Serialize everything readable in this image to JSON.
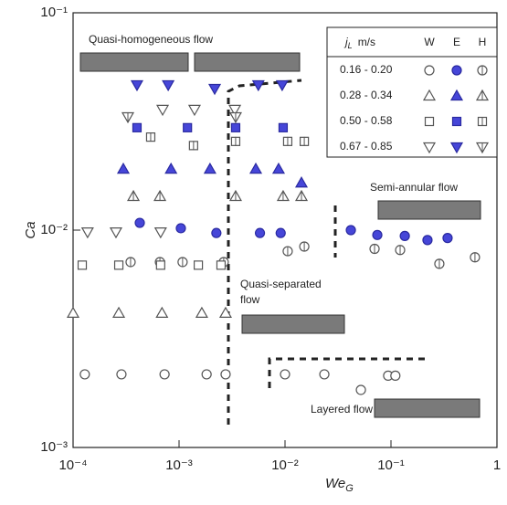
{
  "chart_data": {
    "type": "scatter",
    "x_label": {
      "main": "We",
      "sub": "G"
    },
    "y_label": "Ca",
    "log_x": true,
    "log_y": true,
    "xlim": [
      0.0001,
      1
    ],
    "ylim": [
      0.001,
      0.1
    ],
    "xticks": [
      {
        "value": 0.0001,
        "label": "10⁻⁴"
      },
      {
        "value": 0.001,
        "label": "10⁻³"
      },
      {
        "value": 0.01,
        "label": "10⁻²"
      },
      {
        "value": 0.1,
        "label": "10⁻¹"
      },
      1
    ],
    "yticks": [
      {
        "value": 0.001,
        "label": "10⁻³"
      },
      {
        "value": 0.01,
        "label": "10⁻²"
      },
      {
        "value": 0.1,
        "label": "10⁻¹"
      }
    ],
    "legend_title": {
      "main": "j",
      "sub": "L",
      "unit": "m/s"
    },
    "legend_corner": "upper right",
    "columns": [
      {
        "name": "W",
        "fill": "#ffffff",
        "stroke": "#555555",
        "hatch": false
      },
      {
        "name": "E",
        "fill": "#4646d8",
        "stroke": "#2a2aa0",
        "hatch": false
      },
      {
        "name": "H",
        "fill": "#ffffff",
        "stroke": "#555555",
        "hatch": true
      }
    ],
    "rows": [
      {
        "name": "0.16 - 0.20",
        "marker": "circle",
        "series": [
          {
            "x": [
              0.000129,
              0.000286,
              0.00073,
              0.00182,
              0.00275,
              0.01,
              0.0235,
              0.052,
              0.094,
              0.11
            ],
            "y": [
              0.00217,
              0.00217,
              0.00217,
              0.00217,
              0.00217,
              0.00217,
              0.00217,
              0.00184,
              0.00214,
              0.00214
            ]
          },
          {
            "x": [
              0.000426,
              0.00104,
              0.00225,
              0.0058,
              0.0091,
              0.0418,
              0.0743,
              0.135,
              0.221,
              0.342
            ],
            "y": [
              0.0108,
              0.0102,
              0.0097,
              0.0097,
              0.0097,
              0.01,
              0.0095,
              0.0094,
              0.009,
              0.0092
            ]
          },
          {
            "x": [
              0.000349,
              0.00066,
              0.00108,
              0.00264,
              0.0106,
              0.0152,
              0.07,
              0.122,
              0.286,
              0.62
            ],
            "y": [
              0.00713,
              0.00713,
              0.00713,
              0.00713,
              0.008,
              0.0084,
              0.0082,
              0.0081,
              0.007,
              0.0075
            ]
          }
        ]
      },
      {
        "name": "0.28 - 0.34",
        "marker": "triangle-up",
        "series": [
          {
            "x": [
              0.0001,
              0.00027,
              0.00069,
              0.00164,
              0.00275
            ],
            "y": [
              0.00415,
              0.00415,
              0.00415,
              0.00415,
              0.00415
            ]
          },
          {
            "x": [
              0.000298,
              0.00084,
              0.00196,
              0.0053,
              0.0087,
              0.0143
            ],
            "y": [
              0.0191,
              0.0191,
              0.0191,
              0.0191,
              0.0191,
              0.0165
            ]
          },
          {
            "x": [
              0.000371,
              0.00066,
              0.00342,
              0.0096,
              0.0143
            ],
            "y": [
              0.0143,
              0.0143,
              0.0143,
              0.0143,
              0.0143
            ]
          }
        ]
      },
      {
        "name": "0.50 - 0.58",
        "marker": "square",
        "series": [
          {
            "x": [
              0.000122,
              0.00027,
              0.00067,
              0.00152,
              0.00249
            ],
            "y": [
              0.0069,
              0.0069,
              0.0069,
              0.0069,
              0.0069
            ]
          },
          {
            "x": [
              0.000401,
              0.0012,
              0.00342,
              0.0096
            ],
            "y": [
              0.0296,
              0.0296,
              0.0296,
              0.0296
            ]
          },
          {
            "x": [
              0.00054,
              0.00137,
              0.00342,
              0.0106,
              0.0152
            ],
            "y": [
              0.0268,
              0.0245,
              0.0256,
              0.0256,
              0.0256
            ]
          }
        ]
      },
      {
        "name": "0.67 - 0.85",
        "marker": "triangle-down",
        "series": [
          {
            "x": [
              0.000137,
              0.000254,
              0.00067,
              0.0007,
              0.0014,
              0.00336
            ],
            "y": [
              0.0098,
              0.0098,
              0.0098,
              0.0359,
              0.0359,
              0.0359
            ]
          },
          {
            "x": [
              0.000401,
              0.00079,
              0.00217,
              0.0056,
              0.0094
            ],
            "y": [
              0.0466,
              0.0466,
              0.0448,
              0.0466,
              0.0466
            ]
          },
          {
            "x": [
              0.000329,
              0.00342
            ],
            "y": [
              0.0332,
              0.0332
            ]
          }
        ]
      }
    ],
    "annotations": [
      {
        "lines": [
          "Quasi-homogeneous flow"
        ]
      },
      {
        "lines": [
          "Semi-annular flow"
        ]
      },
      {
        "lines": [
          "Quasi-separated",
          "flow"
        ]
      },
      {
        "lines": [
          "Layered flow"
        ]
      }
    ]
  }
}
